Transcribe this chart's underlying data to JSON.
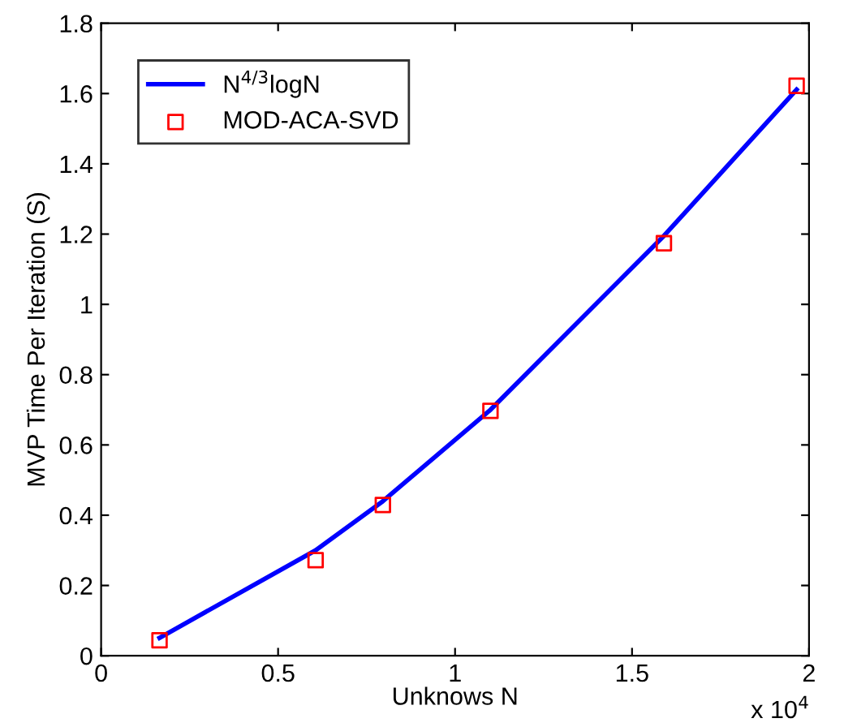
{
  "chart_data": {
    "type": "line",
    "xlabel": "Unknows N",
    "ylabel": "MVP Time Per Iteration (S)",
    "annotations": [
      "x 10$^{4}$"
    ],
    "xlim": [
      0,
      2
    ],
    "xticks": [
      0,
      0.5,
      1,
      1.5,
      2
    ],
    "ylim": [
      0,
      1.8
    ],
    "yticks": [
      0,
      0.2,
      0.4,
      0.6,
      0.8,
      1,
      1.2,
      1.4,
      1.6,
      1.8
    ],
    "grid": false,
    "legend": "top left",
    "series": [
      {
        "name": "N$^{4/3}$logN",
        "color": "#0000ff",
        "marker": "none",
        "line_style": "solid",
        "x": [
          0.165,
          0.606,
          0.796,
          1.1,
          1.59,
          1.965
        ],
        "values": [
          0.051,
          0.3,
          0.44,
          0.7,
          1.195,
          1.611
        ]
      },
      {
        "name": "MOD-ACA-SVD",
        "type": "scatter",
        "color": "#ff0000",
        "marker": "square",
        "x": [
          0.165,
          0.606,
          0.796,
          1.1,
          1.59,
          1.965
        ],
        "values": [
          0.044,
          0.272,
          0.429,
          0.697,
          1.174,
          1.622
        ]
      }
    ]
  }
}
